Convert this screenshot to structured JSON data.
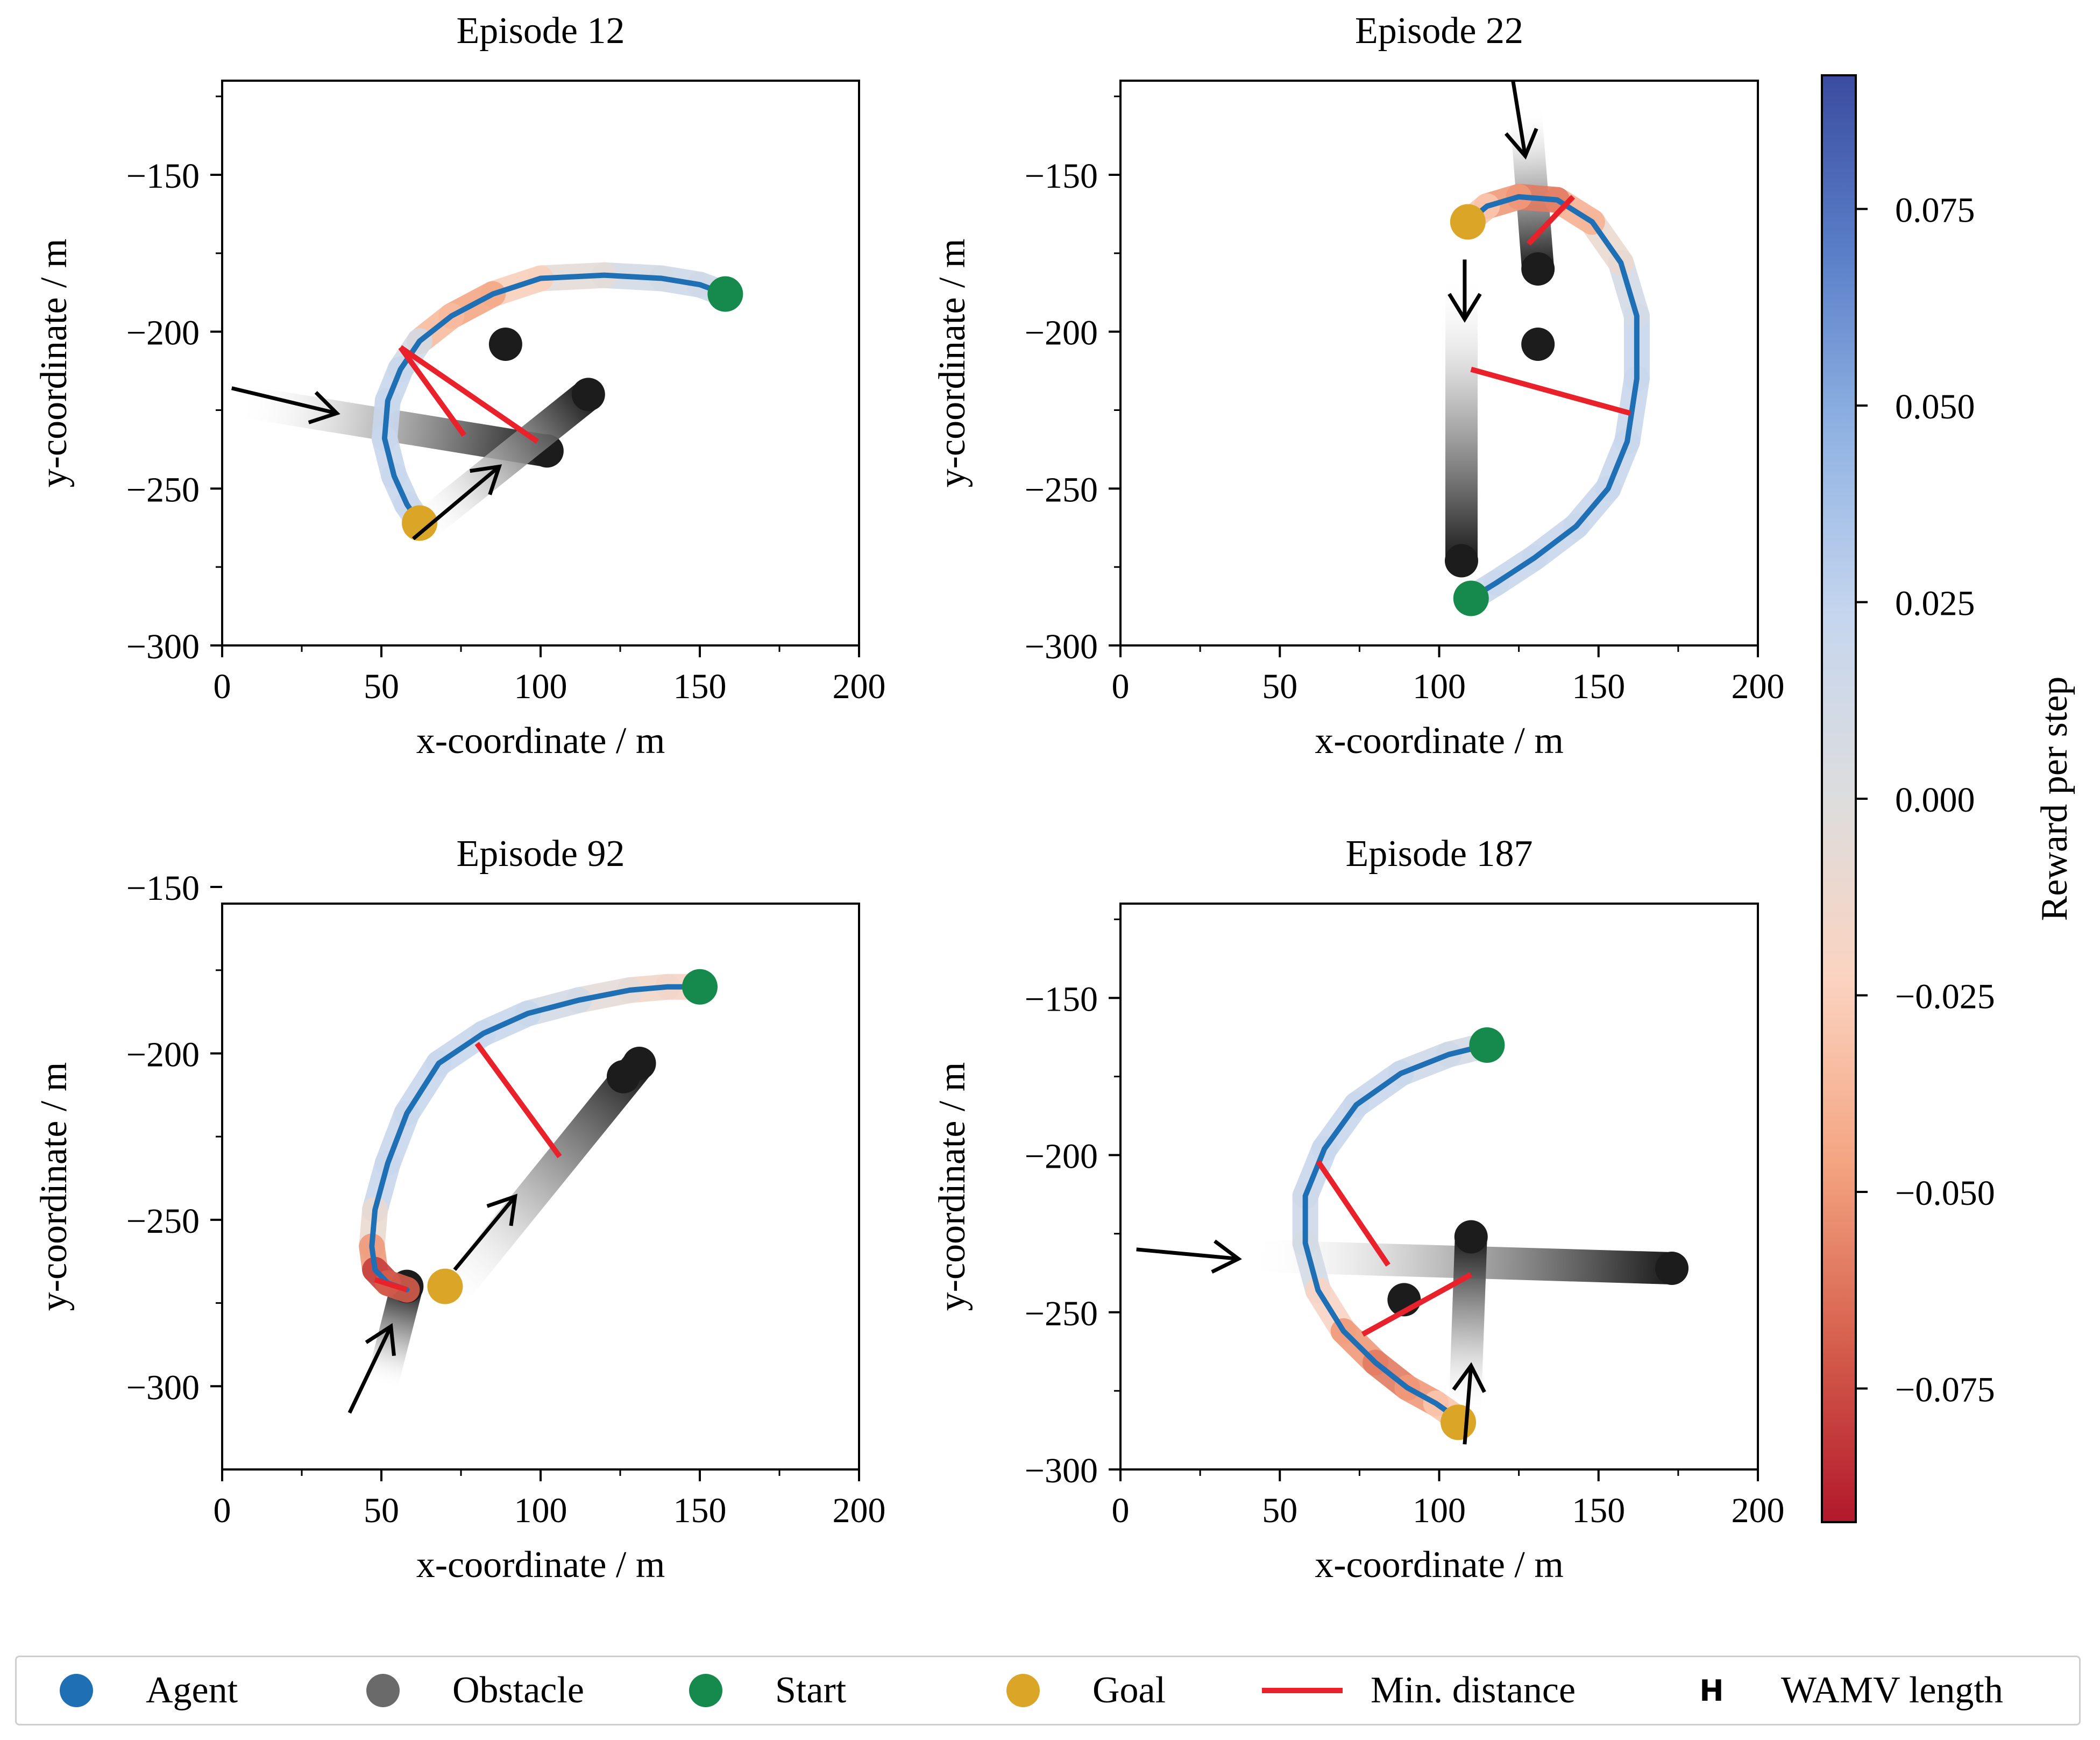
{
  "colors": {
    "agent": "#1f6fb4",
    "obstacle": "#6a6a6a",
    "start": "#168a4c",
    "goal": "#dba628",
    "min_distance": "#e8212b",
    "colormap": [
      "#b2182b",
      "#d6604d",
      "#f4a582",
      "#fbd3c0",
      "#dddddd",
      "#c6d6ee",
      "#92b4e3",
      "#5b80c9",
      "#3b4ca0"
    ]
  },
  "chart_data": [
    {
      "type": "line",
      "title": "Episode 12",
      "xlabel": "x-coordinate / m",
      "ylabel": "y-coordinate / m",
      "xlim": [
        0,
        200
      ],
      "ylim": [
        -300,
        -120
      ],
      "xticks": [
        0,
        50,
        100,
        150,
        200
      ],
      "yticks": [
        -150,
        -200,
        -250,
        -300
      ],
      "xtick_labels": [
        "0",
        "50",
        "100",
        "150",
        "200"
      ],
      "ytick_labels": [
        "−150",
        "−200",
        "−250",
        "−300"
      ],
      "agent_path": [
        [
          158,
          -188
        ],
        [
          150,
          -185
        ],
        [
          138,
          -183
        ],
        [
          120,
          -182
        ],
        [
          100,
          -183
        ],
        [
          85,
          -188
        ],
        [
          72,
          -195
        ],
        [
          62,
          -203
        ],
        [
          56,
          -212
        ],
        [
          52,
          -222
        ],
        [
          51,
          -234
        ],
        [
          54,
          -246
        ],
        [
          58,
          -255
        ],
        [
          62,
          -261
        ]
      ],
      "reward_per_step": [
        0.015,
        0.015,
        0.01,
        -0.005,
        -0.025,
        -0.045,
        -0.035,
        0.01,
        0.02,
        0.02,
        0.02,
        0.02,
        0.02,
        0.02
      ],
      "start": [
        158,
        -188
      ],
      "goal": [
        62,
        -261
      ],
      "obstacles": [
        {
          "trail": [
            [
              5,
              -222
            ],
            [
              102,
              -238
            ]
          ],
          "current": [
            102,
            -238
          ]
        },
        {
          "trail": [
            [
              62,
              -263
            ],
            [
              115,
              -220
            ]
          ],
          "current": [
            115,
            -220
          ]
        },
        {
          "trail": [
            [
              89,
              -204
            ],
            [
              89,
              -204
            ]
          ],
          "current": [
            89,
            -204
          ]
        }
      ],
      "arrows": [
        [
          [
            3,
            -218
          ],
          [
            36,
            -226
          ]
        ],
        [
          [
            60,
            -266
          ],
          [
            87,
            -243
          ]
        ]
      ],
      "min_distance_lines": [
        [
          [
            56,
            -205
          ],
          [
            76,
            -233
          ]
        ],
        [
          [
            56,
            -205
          ],
          [
            99,
            -235
          ]
        ]
      ]
    },
    {
      "type": "line",
      "title": "Episode 22",
      "xlabel": "x-coordinate / m",
      "ylabel": "y-coordinate / m",
      "xlim": [
        0,
        200
      ],
      "ylim": [
        -300,
        -120
      ],
      "xticks": [
        0,
        50,
        100,
        150,
        200
      ],
      "yticks": [
        -150,
        -200,
        -250,
        -300
      ],
      "xtick_labels": [
        "0",
        "50",
        "100",
        "150",
        "200"
      ],
      "ytick_labels": [
        "−150",
        "−200",
        "−250",
        "−300"
      ],
      "agent_path": [
        [
          110,
          -285
        ],
        [
          118,
          -280
        ],
        [
          130,
          -272
        ],
        [
          143,
          -262
        ],
        [
          153,
          -250
        ],
        [
          159,
          -235
        ],
        [
          162,
          -215
        ],
        [
          162,
          -195
        ],
        [
          157,
          -178
        ],
        [
          148,
          -165
        ],
        [
          137,
          -158
        ],
        [
          125,
          -157
        ],
        [
          115,
          -160
        ],
        [
          109,
          -165
        ]
      ],
      "reward_per_step": [
        0.02,
        0.02,
        0.02,
        0.02,
        0.02,
        0.02,
        0.02,
        0.01,
        -0.01,
        -0.04,
        -0.06,
        -0.05,
        -0.03,
        -0.01
      ],
      "start": [
        110,
        -285
      ],
      "goal": [
        109,
        -165
      ],
      "obstacles": [
        {
          "trail": [
            [
              107,
              -182
            ],
            [
              107,
              -273
            ]
          ],
          "current": [
            107,
            -273
          ]
        },
        {
          "trail": [
            [
              127,
              -128
            ],
            [
              131,
              -180
            ]
          ],
          "current": [
            131,
            -180
          ]
        },
        {
          "trail": [
            [
              131,
              -204
            ],
            [
              131,
              -204
            ]
          ],
          "current": [
            131,
            -204
          ]
        }
      ],
      "arrows": [
        [
          [
            123,
            -119
          ],
          [
            127,
            -144
          ]
        ],
        [
          [
            108,
            -177
          ],
          [
            108,
            -196
          ]
        ]
      ],
      "min_distance_lines": [
        [
          [
            110,
            -212
          ],
          [
            160,
            -226
          ]
        ],
        [
          [
            128,
            -172
          ],
          [
            142,
            -157
          ]
        ]
      ]
    },
    {
      "type": "line",
      "title": "Episode 92",
      "xlabel": "x-coordinate / m",
      "ylabel": "y-coordinate / m",
      "xlim": [
        0,
        200
      ],
      "ylim": [
        -325,
        -155
      ],
      "xticks": [
        0,
        50,
        100,
        150,
        200
      ],
      "yticks": [
        -150,
        -200,
        -250,
        -300
      ],
      "xtick_labels": [
        "0",
        "50",
        "100",
        "150",
        "200"
      ],
      "ytick_labels": [
        "−150",
        "−200",
        "−250",
        "−300"
      ],
      "agent_path": [
        [
          150,
          -180
        ],
        [
          140,
          -180
        ],
        [
          128,
          -181
        ],
        [
          112,
          -184
        ],
        [
          96,
          -188
        ],
        [
          82,
          -194
        ],
        [
          68,
          -203
        ],
        [
          58,
          -218
        ],
        [
          52,
          -233
        ],
        [
          48,
          -247
        ],
        [
          47,
          -258
        ],
        [
          48,
          -265
        ],
        [
          52,
          -269
        ],
        [
          58,
          -271
        ]
      ],
      "reward_per_step": [
        -0.02,
        -0.015,
        -0.005,
        0.01,
        0.02,
        0.02,
        0.02,
        0.02,
        0.02,
        -0.01,
        -0.05,
        -0.08,
        -0.07,
        -0.05
      ],
      "start": [
        150,
        -180
      ],
      "goal": [
        70,
        -270
      ],
      "obstacles": [
        {
          "trail": [
            [
              50,
              -300
            ],
            [
              58,
              -270
            ]
          ],
          "current": [
            58,
            -270
          ]
        },
        {
          "trail": [
            [
              70,
              -275
            ],
            [
              131,
              -203
            ]
          ],
          "current": [
            131,
            -203
          ]
        },
        {
          "trail": [
            [
              126,
              -207
            ],
            [
              126,
              -207
            ]
          ],
          "current": [
            126,
            -207
          ]
        }
      ],
      "arrows": [
        [
          [
            40,
            -308
          ],
          [
            53,
            -282
          ]
        ],
        [
          [
            73,
            -265
          ],
          [
            92,
            -243
          ]
        ]
      ],
      "min_distance_lines": [
        [
          [
            80,
            -197
          ],
          [
            106,
            -231
          ]
        ],
        [
          [
            48,
            -268
          ],
          [
            58,
            -271
          ]
        ]
      ]
    },
    {
      "type": "line",
      "title": "Episode 187",
      "xlabel": "x-coordinate / m",
      "ylabel": "y-coordinate / m",
      "xlim": [
        0,
        200
      ],
      "ylim": [
        -300,
        -120
      ],
      "xticks": [
        0,
        50,
        100,
        150,
        200
      ],
      "yticks": [
        -150,
        -200,
        -250,
        -300
      ],
      "xtick_labels": [
        "0",
        "50",
        "100",
        "150",
        "200"
      ],
      "ytick_labels": [
        "−150",
        "−200",
        "−250",
        "−300"
      ],
      "agent_path": [
        [
          115,
          -165
        ],
        [
          103,
          -168
        ],
        [
          88,
          -174
        ],
        [
          74,
          -184
        ],
        [
          64,
          -198
        ],
        [
          58,
          -213
        ],
        [
          58,
          -228
        ],
        [
          62,
          -243
        ],
        [
          70,
          -256
        ],
        [
          80,
          -266
        ],
        [
          90,
          -274
        ],
        [
          99,
          -279
        ],
        [
          106,
          -284
        ]
      ],
      "reward_per_step": [
        0.01,
        0.015,
        0.02,
        0.02,
        0.02,
        0.015,
        0.01,
        -0.02,
        -0.05,
        -0.06,
        -0.05,
        -0.03,
        0.01
      ],
      "start": [
        115,
        -165
      ],
      "goal": [
        106,
        -285
      ],
      "obstacles": [
        {
          "trail": [
            [
              40,
              -232
            ],
            [
              173,
              -236
            ]
          ],
          "current": [
            173,
            -236
          ]
        },
        {
          "trail": [
            [
              108,
              -283
            ],
            [
              110,
              -226
            ]
          ],
          "current": [
            110,
            -226
          ]
        },
        {
          "trail": [
            [
              89,
              -246
            ],
            [
              89,
              -246
            ]
          ],
          "current": [
            89,
            -246
          ]
        }
      ],
      "arrows": [
        [
          [
            5,
            -230
          ],
          [
            37,
            -233
          ]
        ],
        [
          [
            108,
            -292
          ],
          [
            110,
            -267
          ]
        ]
      ],
      "min_distance_lines": [
        [
          [
            62,
            -202
          ],
          [
            84,
            -235
          ]
        ],
        [
          [
            76,
            -257
          ],
          [
            110,
            -238
          ]
        ]
      ]
    }
  ],
  "colorbar": {
    "label": "Reward per step",
    "min": -0.092,
    "max": 0.092,
    "ticks": [
      0.075,
      0.05,
      0.025,
      0.0,
      -0.025,
      -0.05,
      -0.075
    ],
    "tick_labels": [
      "0.075",
      "0.050",
      "0.025",
      "0.000",
      "−0.025",
      "−0.050",
      "−0.075"
    ]
  },
  "legend": {
    "items": [
      {
        "label": "Agent",
        "type": "dot",
        "color": "#1f6fb4"
      },
      {
        "label": "Obstacle",
        "type": "dot",
        "color": "#6a6a6a"
      },
      {
        "label": "Start",
        "type": "dot",
        "color": "#168a4c"
      },
      {
        "label": "Goal",
        "type": "dot",
        "color": "#dba628"
      },
      {
        "label": "Min. distance",
        "type": "line",
        "color": "#e8212b"
      },
      {
        "label": "WAMV length",
        "type": "glyph",
        "glyph": "H"
      }
    ]
  }
}
